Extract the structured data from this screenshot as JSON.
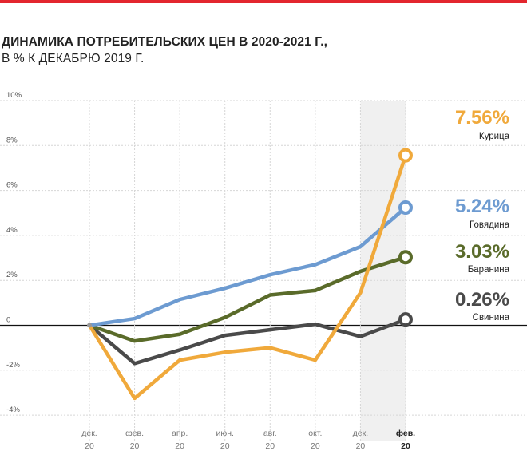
{
  "header": {
    "title_line1": "ДИНАМИКА ПОТРЕБИТЕЛЬСКИХ ЦЕН В 2020-2021 Г.,",
    "title_line2": "В % К ДЕКАБРЮ 2019 Г."
  },
  "chart_data": {
    "type": "line",
    "title": "ДИНАМИКА ПОТРЕБИТЕЛЬСКИХ ЦЕН В 2020-2021 Г., В % К ДЕКАБРЮ 2019 Г.",
    "xlabel": "",
    "ylabel": "",
    "x": [
      "дек. 20",
      "фев. 20",
      "апр. 20",
      "июн. 20",
      "авг. 20",
      "окт. 20",
      "дек. 20",
      "фев. 20"
    ],
    "x_ticks": [
      {
        "top": "дек.",
        "bottom": "20",
        "bold": false
      },
      {
        "top": "фев.",
        "bottom": "20",
        "bold": false
      },
      {
        "top": "апр.",
        "bottom": "20",
        "bold": false
      },
      {
        "top": "июн.",
        "bottom": "20",
        "bold": false
      },
      {
        "top": "авг.",
        "bottom": "20",
        "bold": false
      },
      {
        "top": "окт.",
        "bottom": "20",
        "bold": false
      },
      {
        "top": "дек.",
        "bottom": "20",
        "bold": false
      },
      {
        "top": "фев.",
        "bottom": "20",
        "bold": true
      }
    ],
    "y_ticks": [
      "10%",
      "8%",
      "6%",
      "4%",
      "2%",
      "0",
      "-2%",
      "-4%"
    ],
    "y_tick_values": [
      10,
      8,
      6,
      4,
      2,
      0,
      -2,
      -4
    ],
    "ylim": [
      -4.5,
      10
    ],
    "grid": true,
    "highlight_x_index": 7,
    "series": [
      {
        "name": "Курица",
        "color": "#f0a93b",
        "end_label": "7.56%",
        "values": [
          0,
          -3.25,
          -1.55,
          -1.2,
          -1.0,
          -1.55,
          1.45,
          7.56
        ]
      },
      {
        "name": "Говядина",
        "color": "#6d9bd1",
        "end_label": "5.24%",
        "values": [
          0,
          0.3,
          1.15,
          1.65,
          2.25,
          2.7,
          3.5,
          5.24
        ]
      },
      {
        "name": "Баранина",
        "color": "#5a6b2a",
        "end_label": "3.03%",
        "values": [
          0,
          -0.7,
          -0.4,
          0.35,
          1.35,
          1.55,
          2.4,
          3.03
        ]
      },
      {
        "name": "Свинина",
        "color": "#4a4a4a",
        "end_label": "0.26%",
        "values": [
          0,
          -1.7,
          -1.1,
          -0.45,
          -0.2,
          0.05,
          -0.5,
          0.26
        ]
      }
    ]
  }
}
